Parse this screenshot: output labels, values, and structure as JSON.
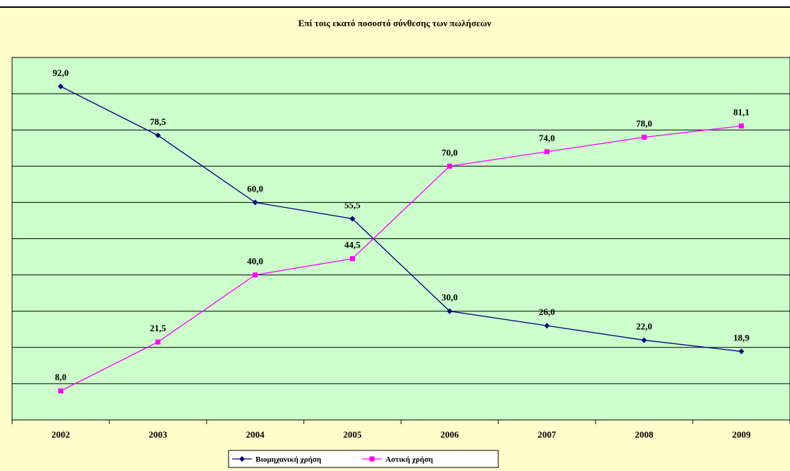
{
  "header_strip": {
    "text": ""
  },
  "chart_data": {
    "type": "line",
    "title": "Επί τοις εκατό ποσοστό σύνθεσης των πωλήσεων",
    "categories": [
      "2002",
      "2003",
      "2004",
      "2005",
      "2006",
      "2007",
      "2008",
      "2009"
    ],
    "series": [
      {
        "name": "Βιομηχανική χρήση",
        "values": [
          92.0,
          78.5,
          60.0,
          55.5,
          30.0,
          26.0,
          22.0,
          18.9
        ],
        "color": "#000080",
        "marker": "diamond"
      },
      {
        "name": "Αστική χρήση",
        "values": [
          8.0,
          21.5,
          40.0,
          44.5,
          70.0,
          74.0,
          78.0,
          81.1
        ],
        "color": "#ff00ff",
        "marker": "square"
      }
    ],
    "data_labels": {
      "Βιομηχανική χρήση": [
        "92,0",
        "78,5",
        "60,0",
        "55,5",
        "30,0",
        "26,0",
        "22,0",
        "18,9"
      ],
      "Αστική χρήση": [
        "8,0",
        "21,5",
        "40,0",
        "44,5",
        "70,0",
        "74,0",
        "78,0",
        "81,1"
      ]
    },
    "ylim": [
      0,
      100
    ],
    "gridlines": true,
    "y_tick_labels": false,
    "legend_position": "bottom",
    "colors": {
      "background": "#ffffcc",
      "plot_area": "#ccffcc",
      "gridline": "#000000"
    }
  }
}
